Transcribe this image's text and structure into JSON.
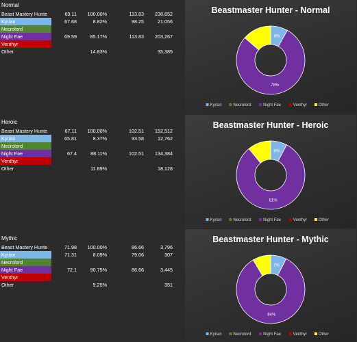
{
  "colors": {
    "Kyrian": "#7fb6e8",
    "Necrolord": "#548235",
    "Night Fae": "#7030a0",
    "Venthyr": "#c00000",
    "Other": "#ffff00"
  },
  "tables": [
    {
      "title": "Normal",
      "rows": [
        {
          "name": "Beast Mastery Hunte",
          "c1": "69.11",
          "c2": "100.00%",
          "c3": "113.83",
          "c4": "238,652"
        },
        {
          "name": "Kyrian",
          "c1": "67.68",
          "c2": "8.82%",
          "c3": "98.25",
          "c4": "21,056"
        },
        {
          "name": "Necrolord",
          "c1": "",
          "c2": "",
          "c3": "",
          "c4": ""
        },
        {
          "name": "Night Fae",
          "c1": "69.59",
          "c2": "85.17%",
          "c3": "113.83",
          "c4": "203,267"
        },
        {
          "name": "Venthyr",
          "c1": "",
          "c2": "",
          "c3": "",
          "c4": ""
        },
        {
          "name": "Other",
          "c1": "",
          "c2": "14.83%",
          "c3": "",
          "c4": "35,385"
        }
      ]
    },
    {
      "title": "Heroic",
      "rows": [
        {
          "name": "Beast Mastery Hunte",
          "c1": "67.11",
          "c2": "100.00%",
          "c3": "102.51",
          "c4": "152,512"
        },
        {
          "name": "Kyrian",
          "c1": "65.81",
          "c2": "8.37%",
          "c3": "93.58",
          "c4": "12,762"
        },
        {
          "name": "Necrolord",
          "c1": "",
          "c2": "",
          "c3": "",
          "c4": ""
        },
        {
          "name": "Night Fae",
          "c1": "67.4",
          "c2": "88.11%",
          "c3": "102.51",
          "c4": "134,384"
        },
        {
          "name": "Venthyr",
          "c1": "",
          "c2": "",
          "c3": "",
          "c4": ""
        },
        {
          "name": "Other",
          "c1": "",
          "c2": "11.89%",
          "c3": "",
          "c4": "18,128"
        }
      ]
    },
    {
      "title": "Mythic",
      "rows": [
        {
          "name": "Beast Mastery Hunte",
          "c1": "71.98",
          "c2": "100.00%",
          "c3": "86.66",
          "c4": "3,796"
        },
        {
          "name": "Kyrian",
          "c1": "71.31",
          "c2": "8.09%",
          "c3": "79.06",
          "c4": "307"
        },
        {
          "name": "Necrolord",
          "c1": "",
          "c2": "",
          "c3": "",
          "c4": ""
        },
        {
          "name": "Night Fae",
          "c1": "72.1",
          "c2": "90.75%",
          "c3": "86.66",
          "c4": "3,445"
        },
        {
          "name": "Venthyr",
          "c1": "",
          "c2": "",
          "c3": "",
          "c4": ""
        },
        {
          "name": "Other",
          "c1": "",
          "c2": "9.25%",
          "c3": "",
          "c4": "351"
        }
      ]
    }
  ],
  "chart_data": [
    {
      "type": "pie",
      "title": "Beastmaster Hunter - Normal",
      "categories": [
        "Kyrian",
        "Necrolord",
        "Night Fae",
        "Venthyr",
        "Other"
      ],
      "values": [
        8.82,
        0,
        85.17,
        0,
        14.83
      ],
      "data_labels": [
        "8%",
        "",
        "78%",
        "",
        ""
      ],
      "legend": [
        "Kyrian",
        "Necrolord",
        "Night Fae",
        "Venthyr",
        "Other"
      ],
      "legend_position": "bottom"
    },
    {
      "type": "pie",
      "title": "Beastmaster Hunter - Heroic",
      "categories": [
        "Kyrian",
        "Necrolord",
        "Night Fae",
        "Venthyr",
        "Other"
      ],
      "values": [
        8.37,
        0,
        88.11,
        0,
        11.89
      ],
      "data_labels": [
        "8%",
        "",
        "81%",
        "",
        ""
      ],
      "legend": [
        "Kyrian",
        "Necrolord",
        "Night Fae",
        "Venthyr",
        "Other"
      ],
      "legend_position": "bottom"
    },
    {
      "type": "pie",
      "title": "Beastmaster Hunter - Mythic",
      "categories": [
        "Kyrian",
        "Necrolord",
        "Night Fae",
        "Venthyr",
        "Other"
      ],
      "values": [
        8.09,
        0,
        90.75,
        0,
        9.25
      ],
      "data_labels": [
        "7%",
        "",
        "84%",
        "",
        ""
      ],
      "legend": [
        "Kyrian",
        "Necrolord",
        "Night Fae",
        "Venthyr",
        "Other"
      ],
      "legend_position": "bottom"
    }
  ]
}
